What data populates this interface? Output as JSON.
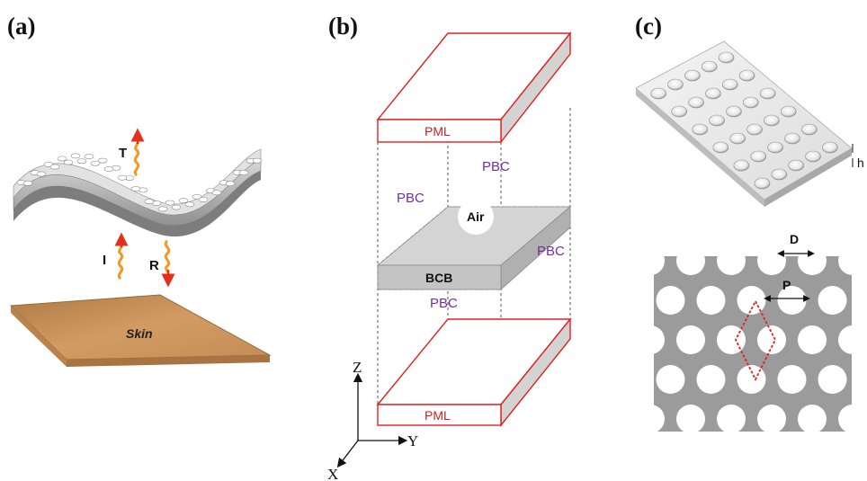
{
  "panels": {
    "a": {
      "label": "(a)",
      "waves": {
        "transmitted": "T",
        "incident": "I",
        "reflected": "R"
      },
      "skin_label": "Skin"
    },
    "b": {
      "label": "(b)",
      "pml_top": "PML",
      "pml_bottom": "PML",
      "pbc_labels": [
        "PBC",
        "PBC",
        "PBC",
        "PBC"
      ],
      "air_label": "Air",
      "bcb_label": "BCB",
      "axes": {
        "z": "Z",
        "y": "Y",
        "x": "X"
      }
    },
    "c": {
      "label": "(c)",
      "height_label": "h",
      "diameter_label": "D",
      "period_label": "P"
    }
  },
  "colors": {
    "pml_outline": "#e02020",
    "pbc_text": "#7030a0",
    "film_gray": "#a9a9a9",
    "skin": "#c08a52",
    "wave_red": "#e3301c",
    "wave_orange": "#f29a1f"
  }
}
